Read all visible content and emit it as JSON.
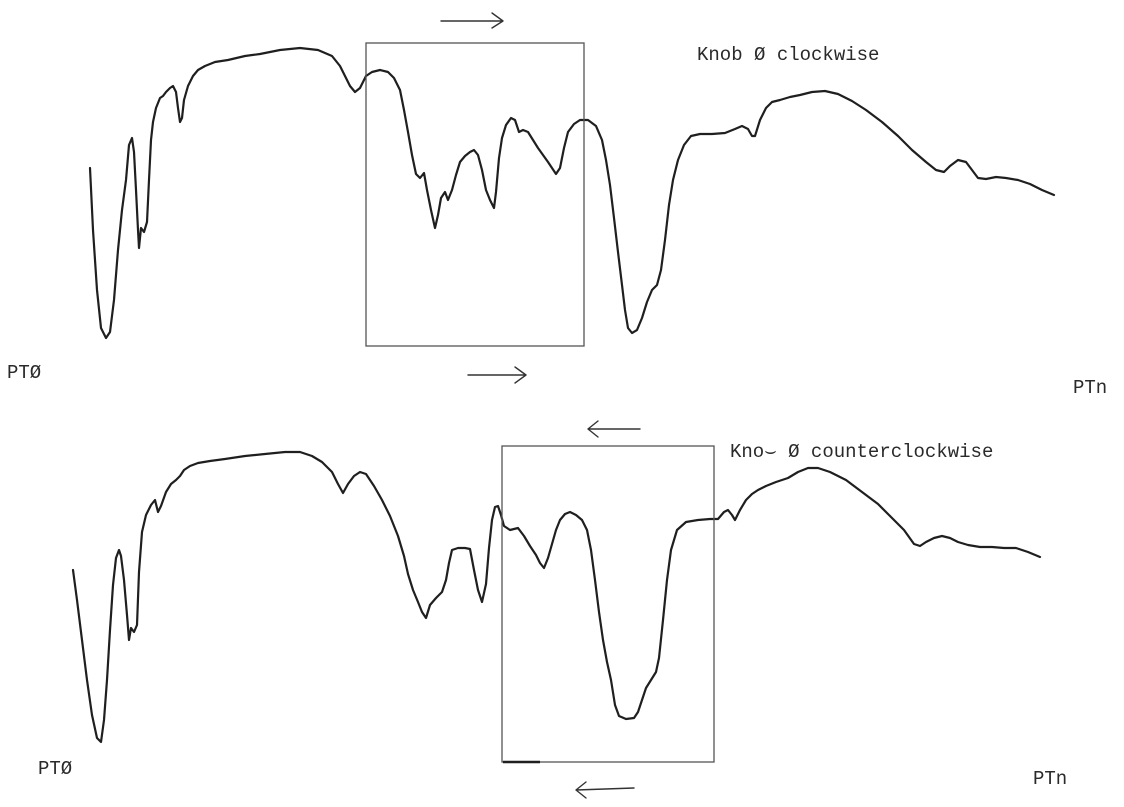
{
  "top_panel": {
    "caption": "Knob Ø clockwise",
    "start_label": "PTØ",
    "end_label": "PTn",
    "arrow_direction": "right"
  },
  "bottom_panel": {
    "caption": "Kno⌣ Ø counterclockwise",
    "start_label": "PTØ",
    "end_label": "PTn",
    "arrow_direction": "left"
  },
  "colors": {
    "ink": "#1f1f1f",
    "box": "#555555",
    "background": "#ffffff"
  }
}
